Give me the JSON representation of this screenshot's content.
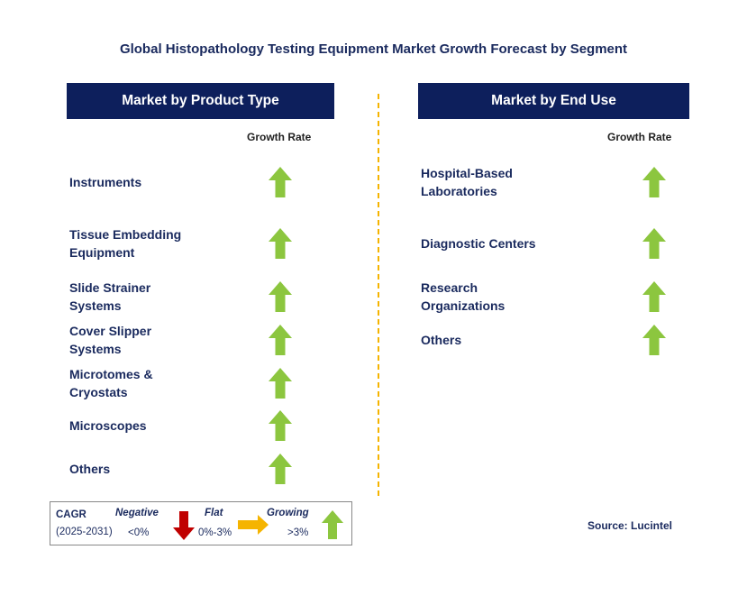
{
  "title": "Global Histopathology Testing Equipment Market Growth Forecast by Segment",
  "left_panel": {
    "header": "Market by Product Type",
    "growth_rate_label": "Growth Rate",
    "items": [
      {
        "label": "Instruments",
        "trend": "growing"
      },
      {
        "label": "Tissue Embedding Equipment",
        "trend": "growing"
      },
      {
        "label": "Slide Strainer Systems",
        "trend": "growing"
      },
      {
        "label": "Cover Slipper Systems",
        "trend": "growing"
      },
      {
        "label": "Microtomes & Cryostats",
        "trend": "growing"
      },
      {
        "label": "Microscopes",
        "trend": "growing"
      },
      {
        "label": "Others",
        "trend": "growing"
      }
    ]
  },
  "right_panel": {
    "header": "Market by End Use",
    "growth_rate_label": "Growth Rate",
    "items": [
      {
        "label": "Hospital-Based Laboratories",
        "trend": "growing"
      },
      {
        "label": "Diagnostic Centers",
        "trend": "growing"
      },
      {
        "label": "Research Organizations",
        "trend": "growing"
      },
      {
        "label": "Others",
        "trend": "growing"
      }
    ]
  },
  "legend": {
    "cagr_label": "CAGR",
    "period": "(2025-2031)",
    "negative_label": "Negative",
    "negative_range": "<0%",
    "flat_label": "Flat",
    "flat_range": "0%-3%",
    "growing_label": "Growing",
    "growing_range": ">3%"
  },
  "source": "Source: Lucintel",
  "colors": {
    "header_bg": "#0d1f5c",
    "growing_arrow": "#8cc63f",
    "negative_arrow": "#c00000",
    "flat_arrow": "#f5b400",
    "divider": "#f5b400"
  },
  "icons": {
    "growing": "up-arrow-icon",
    "negative": "down-arrow-icon",
    "flat": "right-arrow-icon"
  }
}
